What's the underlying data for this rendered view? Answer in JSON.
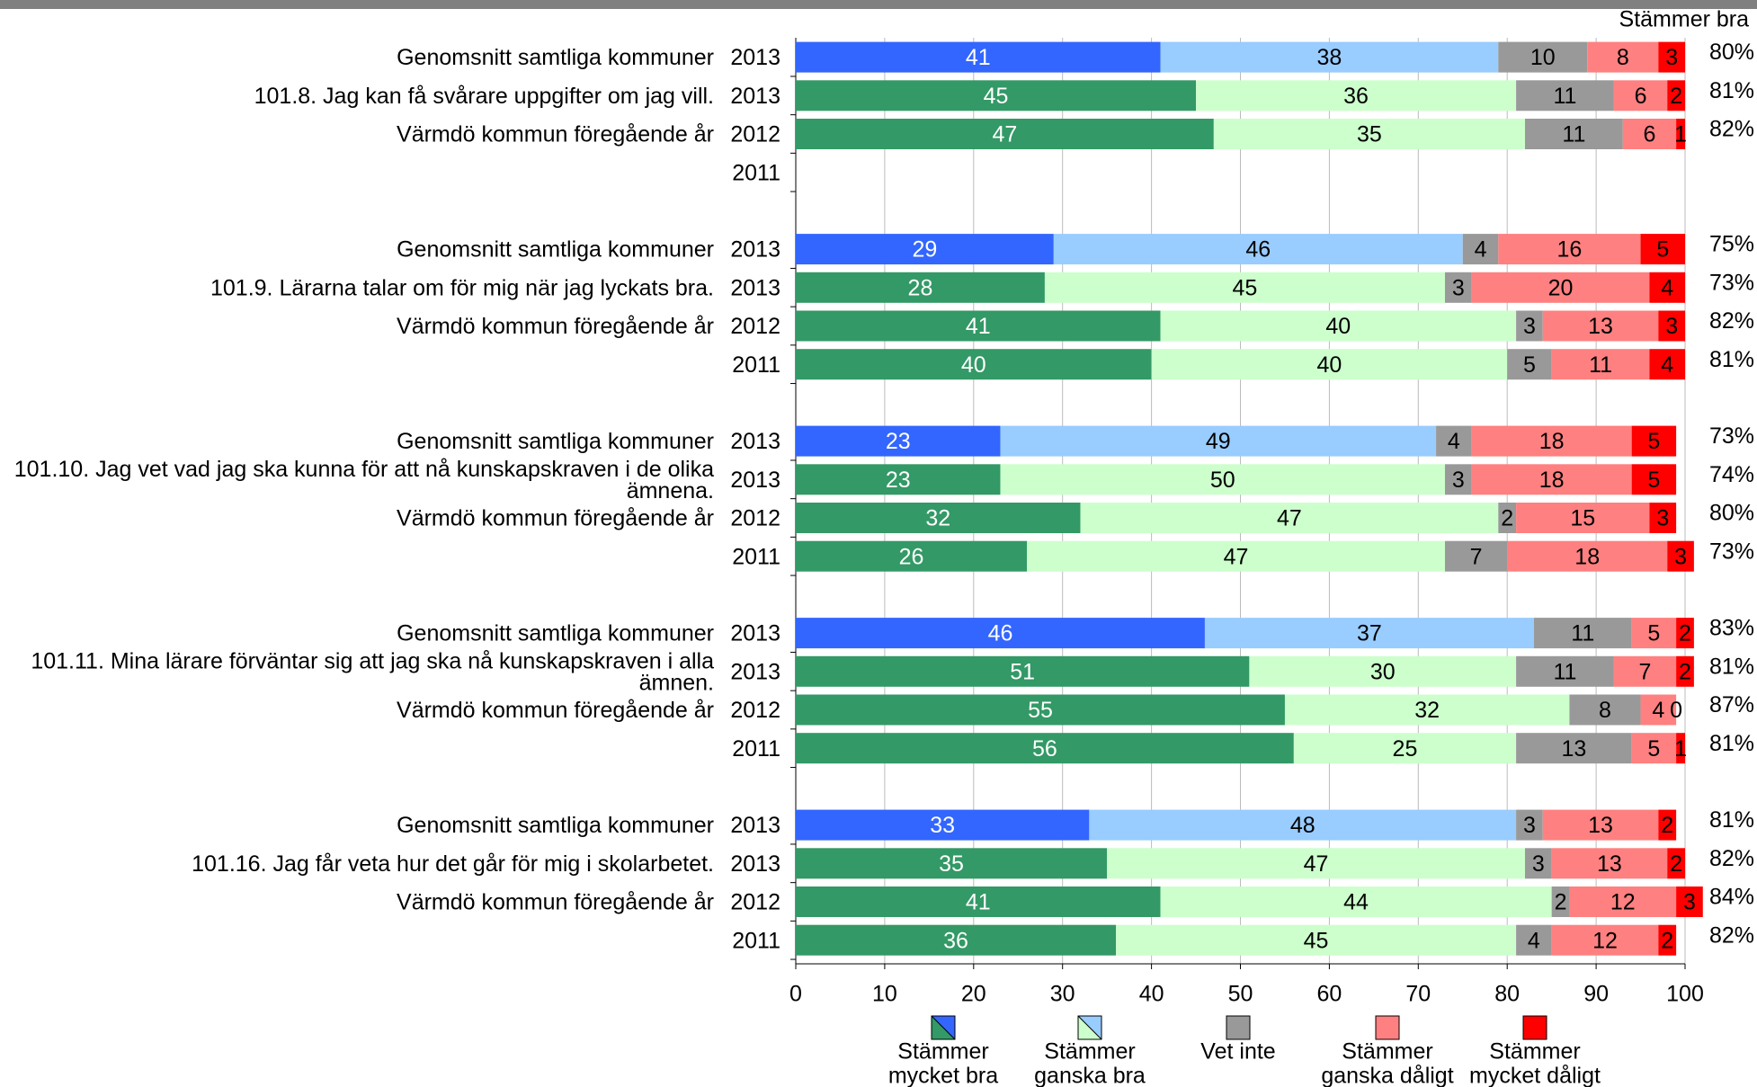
{
  "chart_data": {
    "type": "stacked-bar",
    "share_header": "Stämmer bra",
    "xlim": [
      0,
      100
    ],
    "xticks": [
      0,
      10,
      20,
      30,
      40,
      50,
      60,
      70,
      80,
      90,
      100
    ],
    "grid": true,
    "series": [
      {
        "name_lines": [
          "Stämmer",
          "mycket bra"
        ],
        "color": "#339966",
        "compare_color": "#3366ff"
      },
      {
        "name_lines": [
          "Stämmer",
          "ganska bra"
        ],
        "color": "#ccffcc",
        "compare_color": "#99ccff"
      },
      {
        "name_lines": [
          "Vet inte"
        ],
        "color": "#999999",
        "compare_color": "#999999"
      },
      {
        "name_lines": [
          "Stämmer",
          "ganska dåligt"
        ],
        "color": "#ff8080",
        "compare_color": "#ff8080"
      },
      {
        "name_lines": [
          "Stämmer",
          "mycket dåligt"
        ],
        "color": "#ff0000",
        "compare_color": "#ff0000"
      }
    ],
    "groups": [
      {
        "rows": [
          {
            "label_lines": [
              "Genomsnitt samtliga kommuner"
            ],
            "year": "2013",
            "compare": true,
            "values": [
              41,
              38,
              10,
              8,
              3
            ],
            "share": 80,
            "share_label": "80%"
          },
          {
            "label_lines": [
              "101.8.  Jag kan få svårare uppgifter om jag vill."
            ],
            "year": "2013",
            "values": [
              45,
              36,
              11,
              6,
              2
            ],
            "share": 81,
            "share_label": "81%"
          },
          {
            "label_lines": [
              "Värmdö kommun föregående år"
            ],
            "year": "2012",
            "values": [
              47,
              35,
              11,
              6,
              1
            ],
            "share": 82,
            "share_label": "82%"
          },
          {
            "label_lines": [],
            "year": "2011",
            "values": [
              null,
              null,
              null,
              null,
              null
            ]
          }
        ]
      },
      {
        "rows": [
          {
            "label_lines": [
              "Genomsnitt samtliga kommuner"
            ],
            "year": "2013",
            "compare": true,
            "values": [
              29,
              46,
              4,
              16,
              5
            ],
            "share": 75,
            "share_label": "75%"
          },
          {
            "label_lines": [
              "101.9.  Lärarna talar om för mig när jag lyckats bra."
            ],
            "year": "2013",
            "values": [
              28,
              45,
              3,
              20,
              4
            ],
            "share": 73,
            "share_label": "73%"
          },
          {
            "label_lines": [
              "Värmdö kommun föregående år"
            ],
            "year": "2012",
            "values": [
              41,
              40,
              3,
              13,
              3
            ],
            "share": 82,
            "share_label": "82%"
          },
          {
            "label_lines": [],
            "year": "2011",
            "values": [
              40,
              40,
              5,
              11,
              4
            ],
            "share": 81,
            "share_label": "81%"
          }
        ]
      },
      {
        "rows": [
          {
            "label_lines": [
              "Genomsnitt samtliga kommuner"
            ],
            "year": "2013",
            "compare": true,
            "values": [
              23,
              49,
              4,
              18,
              5
            ],
            "share": 73,
            "share_label": "73%"
          },
          {
            "label_lines": [
              "101.10.  Jag vet vad jag ska kunna för att nå kunskapskraven i de olika",
              "ämnena."
            ],
            "year": "2013",
            "values": [
              23,
              50,
              3,
              18,
              5
            ],
            "share": 74,
            "share_label": "74%"
          },
          {
            "label_lines": [
              "Värmdö kommun föregående år"
            ],
            "year": "2012",
            "values": [
              32,
              47,
              2,
              15,
              3
            ],
            "share": 80,
            "share_label": "80%"
          },
          {
            "label_lines": [],
            "year": "2011",
            "values": [
              26,
              47,
              7,
              18,
              3
            ],
            "share": 73,
            "share_label": "73%"
          }
        ]
      },
      {
        "rows": [
          {
            "label_lines": [
              "Genomsnitt samtliga kommuner"
            ],
            "year": "2013",
            "compare": true,
            "values": [
              46,
              37,
              11,
              5,
              2
            ],
            "share": 83,
            "share_label": "83%"
          },
          {
            "label_lines": [
              "101.11.  Mina lärare förväntar sig att jag ska nå kunskapskraven i alla",
              "ämnen."
            ],
            "year": "2013",
            "values": [
              51,
              30,
              11,
              7,
              2
            ],
            "share": 81,
            "share_label": "81%"
          },
          {
            "label_lines": [
              "Värmdö kommun föregående år"
            ],
            "year": "2012",
            "values": [
              55,
              32,
              8,
              4,
              0
            ],
            "share": 87,
            "share_label": "87%"
          },
          {
            "label_lines": [],
            "year": "2011",
            "values": [
              56,
              25,
              13,
              5,
              1
            ],
            "share": 81,
            "share_label": "81%"
          }
        ]
      },
      {
        "rows": [
          {
            "label_lines": [
              "Genomsnitt samtliga kommuner"
            ],
            "year": "2013",
            "compare": true,
            "values": [
              33,
              48,
              3,
              13,
              2
            ],
            "share": 81,
            "share_label": "81%"
          },
          {
            "label_lines": [
              "101.16.  Jag får veta hur det går för mig i skolarbetet."
            ],
            "year": "2013",
            "values": [
              35,
              47,
              3,
              13,
              2
            ],
            "share": 82,
            "share_label": "82%"
          },
          {
            "label_lines": [
              "Värmdö kommun föregående år"
            ],
            "year": "2012",
            "values": [
              41,
              44,
              2,
              12,
              3
            ],
            "share": 84,
            "share_label": "84%"
          },
          {
            "label_lines": [],
            "year": "2011",
            "values": [
              36,
              45,
              4,
              12,
              2
            ],
            "share": 82,
            "share_label": "82%"
          }
        ]
      }
    ]
  }
}
